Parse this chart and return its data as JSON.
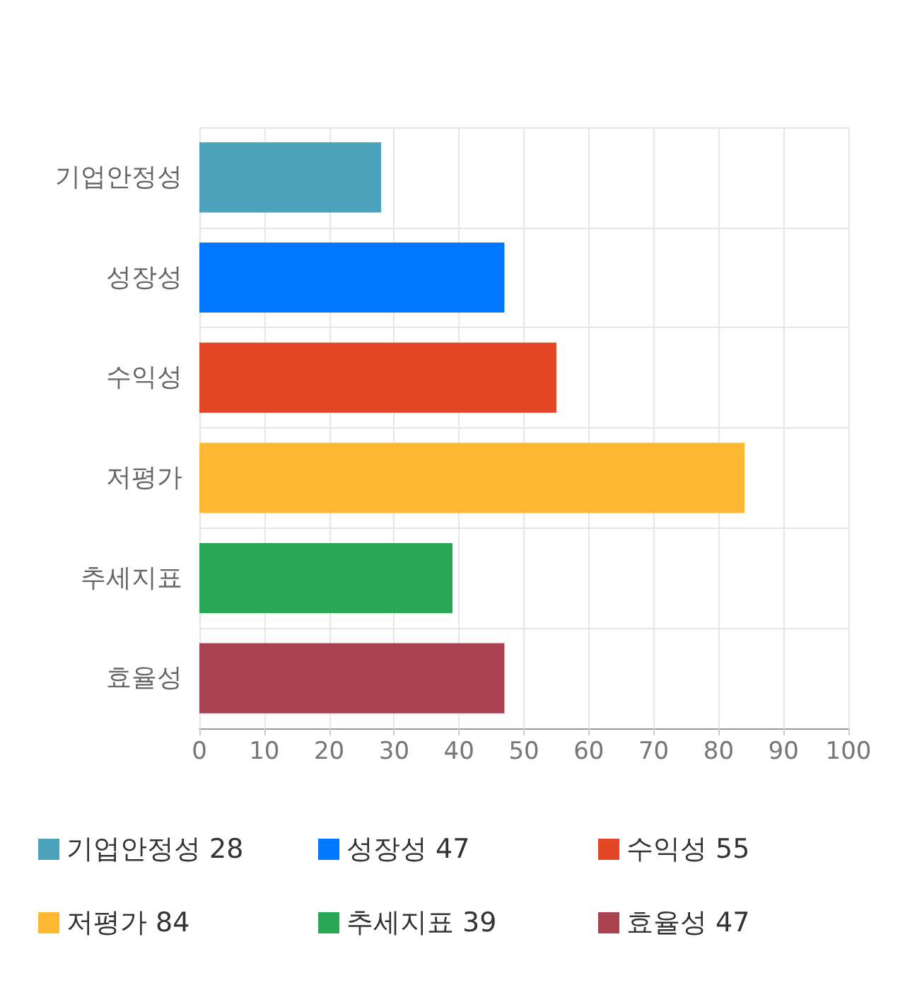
{
  "chart_data": {
    "type": "bar",
    "orientation": "horizontal",
    "categories": [
      "기업안정성",
      "성장성",
      "수익성",
      "저평가",
      "추세지표",
      "효율성"
    ],
    "series": [
      {
        "name": "기업안정성 28",
        "color": "#4aa3ba",
        "values": [
          28,
          null,
          null,
          null,
          null,
          null
        ]
      },
      {
        "name": "성장성 47",
        "color": "#0077ff",
        "values": [
          null,
          47,
          null,
          null,
          null,
          null
        ]
      },
      {
        "name": "수익성 55",
        "color": "#e24625",
        "values": [
          null,
          null,
          55,
          null,
          null,
          null
        ]
      },
      {
        "name": "저평가 84",
        "color": "#ffb833",
        "values": [
          null,
          null,
          null,
          84,
          null,
          null
        ]
      },
      {
        "name": "추세지표 39",
        "color": "#2aa755",
        "values": [
          null,
          null,
          null,
          null,
          39,
          null
        ]
      },
      {
        "name": "효율성 47",
        "color": "#a8424f",
        "values": [
          null,
          null,
          null,
          null,
          null,
          47
        ]
      }
    ],
    "xlim": [
      0,
      100
    ],
    "xticks": [
      0,
      10,
      20,
      30,
      40,
      50,
      60,
      70,
      80,
      90,
      100
    ],
    "grid": true,
    "legend": "bottom"
  }
}
